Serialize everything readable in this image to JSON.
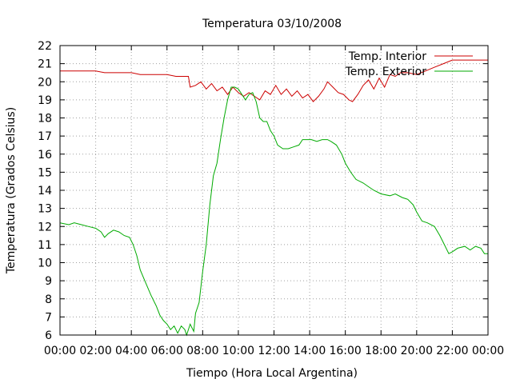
{
  "chart_data": {
    "type": "line",
    "title": "Temperatura 03/10/2008",
    "xlabel": "Tiempo (Hora Local Argentina)",
    "ylabel": "Temperatura (Grados Celsius)",
    "xlim": [
      0,
      24
    ],
    "ylim": [
      6,
      22
    ],
    "x_tick_labels": [
      "00:00",
      "02:00",
      "04:00",
      "06:00",
      "08:00",
      "10:00",
      "12:00",
      "14:00",
      "16:00",
      "18:00",
      "20:00",
      "22:00",
      "00:00"
    ],
    "y_tick_labels": [
      "6",
      "7",
      "8",
      "9",
      "10",
      "11",
      "12",
      "13",
      "14",
      "15",
      "16",
      "17",
      "18",
      "19",
      "20",
      "21",
      "22"
    ],
    "grid": true,
    "legend_position": "top-right",
    "series": [
      {
        "name": "Temp. Interior",
        "color": "#cc0000",
        "points": [
          [
            0,
            20.6
          ],
          [
            1,
            20.6
          ],
          [
            2,
            20.6
          ],
          [
            2.5,
            20.5
          ],
          [
            3,
            20.5
          ],
          [
            4,
            20.5
          ],
          [
            4.5,
            20.4
          ],
          [
            5,
            20.4
          ],
          [
            6,
            20.4
          ],
          [
            6.5,
            20.3
          ],
          [
            7,
            20.3
          ],
          [
            7.2,
            20.3
          ],
          [
            7.3,
            19.7
          ],
          [
            7.6,
            19.8
          ],
          [
            7.9,
            20.0
          ],
          [
            8.2,
            19.6
          ],
          [
            8.5,
            19.9
          ],
          [
            8.8,
            19.5
          ],
          [
            9.1,
            19.7
          ],
          [
            9.4,
            19.3
          ],
          [
            9.7,
            19.7
          ],
          [
            10.0,
            19.4
          ],
          [
            10.3,
            19.2
          ],
          [
            10.6,
            19.4
          ],
          [
            10.9,
            19.2
          ],
          [
            11.2,
            19.0
          ],
          [
            11.5,
            19.5
          ],
          [
            11.8,
            19.3
          ],
          [
            12.1,
            19.8
          ],
          [
            12.4,
            19.3
          ],
          [
            12.7,
            19.6
          ],
          [
            13.0,
            19.2
          ],
          [
            13.3,
            19.5
          ],
          [
            13.6,
            19.1
          ],
          [
            13.9,
            19.3
          ],
          [
            14.2,
            18.9
          ],
          [
            14.5,
            19.2
          ],
          [
            14.8,
            19.6
          ],
          [
            15.0,
            20.0
          ],
          [
            15.3,
            19.7
          ],
          [
            15.6,
            19.4
          ],
          [
            15.9,
            19.3
          ],
          [
            16.2,
            19.0
          ],
          [
            16.4,
            18.9
          ],
          [
            16.7,
            19.3
          ],
          [
            17.0,
            19.8
          ],
          [
            17.3,
            20.1
          ],
          [
            17.6,
            19.6
          ],
          [
            17.9,
            20.2
          ],
          [
            18.2,
            19.7
          ],
          [
            18.5,
            20.4
          ],
          [
            18.8,
            20.3
          ],
          [
            19.1,
            20.5
          ],
          [
            19.5,
            20.5
          ],
          [
            20.0,
            20.4
          ],
          [
            20.5,
            20.6
          ],
          [
            21.0,
            20.8
          ],
          [
            21.5,
            21.0
          ],
          [
            22.0,
            21.2
          ],
          [
            23.0,
            21.2
          ],
          [
            24.0,
            21.2
          ]
        ]
      },
      {
        "name": "Temp. Exterior",
        "color": "#00aa00",
        "points": [
          [
            0,
            12.2
          ],
          [
            0.5,
            12.1
          ],
          [
            0.8,
            12.2
          ],
          [
            1.2,
            12.1
          ],
          [
            1.6,
            12.0
          ],
          [
            2.0,
            11.9
          ],
          [
            2.3,
            11.7
          ],
          [
            2.5,
            11.4
          ],
          [
            2.7,
            11.6
          ],
          [
            3.0,
            11.8
          ],
          [
            3.3,
            11.7
          ],
          [
            3.6,
            11.5
          ],
          [
            3.9,
            11.4
          ],
          [
            4.1,
            11.0
          ],
          [
            4.3,
            10.4
          ],
          [
            4.5,
            9.6
          ],
          [
            4.8,
            8.9
          ],
          [
            5.1,
            8.2
          ],
          [
            5.4,
            7.6
          ],
          [
            5.6,
            7.1
          ],
          [
            5.8,
            6.8
          ],
          [
            6.0,
            6.6
          ],
          [
            6.2,
            6.3
          ],
          [
            6.4,
            6.5
          ],
          [
            6.6,
            6.1
          ],
          [
            6.8,
            6.5
          ],
          [
            7.0,
            6.3
          ],
          [
            7.1,
            6.0
          ],
          [
            7.3,
            6.6
          ],
          [
            7.5,
            6.2
          ],
          [
            7.6,
            7.2
          ],
          [
            7.8,
            7.8
          ],
          [
            8.0,
            9.5
          ],
          [
            8.2,
            11.0
          ],
          [
            8.4,
            13.2
          ],
          [
            8.6,
            14.8
          ],
          [
            8.8,
            15.5
          ],
          [
            9.0,
            16.8
          ],
          [
            9.2,
            18.0
          ],
          [
            9.4,
            19.0
          ],
          [
            9.6,
            19.7
          ],
          [
            9.8,
            19.7
          ],
          [
            10.0,
            19.6
          ],
          [
            10.2,
            19.3
          ],
          [
            10.4,
            19.0
          ],
          [
            10.6,
            19.3
          ],
          [
            10.8,
            19.4
          ],
          [
            11.0,
            18.9
          ],
          [
            11.2,
            18.0
          ],
          [
            11.4,
            17.8
          ],
          [
            11.6,
            17.8
          ],
          [
            11.8,
            17.3
          ],
          [
            12.0,
            17.0
          ],
          [
            12.2,
            16.5
          ],
          [
            12.5,
            16.3
          ],
          [
            12.8,
            16.3
          ],
          [
            13.1,
            16.4
          ],
          [
            13.4,
            16.5
          ],
          [
            13.6,
            16.8
          ],
          [
            13.9,
            16.8
          ],
          [
            14.1,
            16.8
          ],
          [
            14.4,
            16.7
          ],
          [
            14.7,
            16.8
          ],
          [
            15.0,
            16.8
          ],
          [
            15.2,
            16.7
          ],
          [
            15.5,
            16.5
          ],
          [
            15.8,
            16.0
          ],
          [
            16.0,
            15.5
          ],
          [
            16.3,
            15.0
          ],
          [
            16.6,
            14.6
          ],
          [
            17.0,
            14.4
          ],
          [
            17.3,
            14.2
          ],
          [
            17.6,
            14.0
          ],
          [
            18.0,
            13.8
          ],
          [
            18.5,
            13.7
          ],
          [
            18.8,
            13.8
          ],
          [
            19.2,
            13.6
          ],
          [
            19.5,
            13.5
          ],
          [
            19.8,
            13.2
          ],
          [
            20.0,
            12.8
          ],
          [
            20.3,
            12.3
          ],
          [
            20.6,
            12.2
          ],
          [
            21.0,
            12.0
          ],
          [
            21.3,
            11.5
          ],
          [
            21.5,
            11.1
          ],
          [
            21.8,
            10.5
          ],
          [
            22.0,
            10.6
          ],
          [
            22.3,
            10.8
          ],
          [
            22.7,
            10.9
          ],
          [
            23.0,
            10.7
          ],
          [
            23.3,
            10.9
          ],
          [
            23.6,
            10.8
          ],
          [
            23.8,
            10.5
          ],
          [
            24.0,
            10.5
          ]
        ]
      }
    ]
  }
}
